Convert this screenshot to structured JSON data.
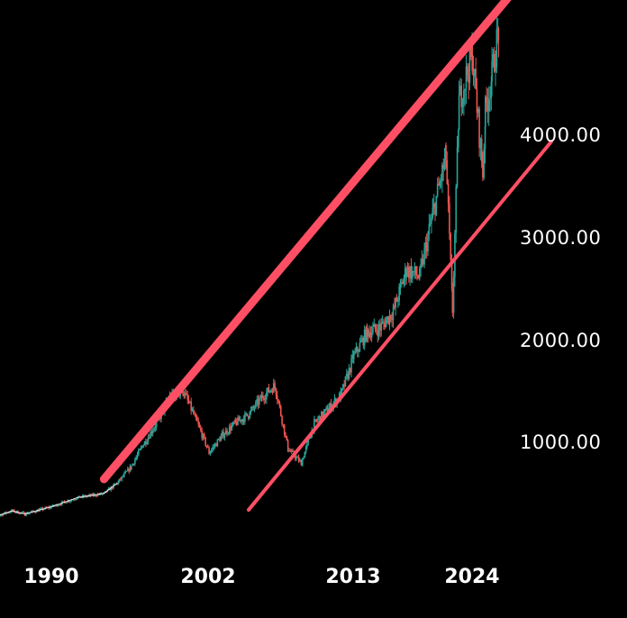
{
  "chart_data": {
    "type": "candlestick",
    "title": "",
    "xlabel": "",
    "ylabel": "",
    "x_ticks": [
      "1990",
      "2002",
      "2013",
      "2024"
    ],
    "y_ticks": [
      "1000.00",
      "2000.00",
      "3000.00",
      "4000.00"
    ],
    "y_tick_values": [
      1000,
      2000,
      3000,
      4000
    ],
    "y_axis_position": "right",
    "grid": false,
    "colors": {
      "up": "#26a69a",
      "down": "#ef5350",
      "price_line": "#e8e8e8",
      "trendline": "#ff4f64",
      "background": "#000000"
    },
    "series": [
      {
        "x": [
          1985,
          1987,
          1988,
          1990,
          1992,
          1994,
          1995,
          1996,
          1997,
          1998,
          1999,
          2000,
          2001,
          2002,
          2003,
          2004,
          2005,
          2006,
          2007,
          2008,
          2009,
          2010,
          2011,
          2012,
          2013,
          2014,
          2015,
          2016,
          2017,
          2018,
          2019,
          2020,
          2020.5,
          2021,
          2022,
          2022.8,
          2023,
          2023.5,
          2024
        ],
        "values": [
          200,
          290,
          260,
          330,
          420,
          460,
          560,
          710,
          940,
          1150,
          1400,
          1470,
          1180,
          860,
          1030,
          1150,
          1230,
          1400,
          1520,
          890,
          760,
          1150,
          1280,
          1420,
          1800,
          2040,
          2080,
          2240,
          2650,
          2580,
          3200,
          3750,
          2250,
          4300,
          4750,
          3600,
          4200,
          4550,
          5000
        ]
      }
    ],
    "trendlines": [
      {
        "name": "upper",
        "from": {
          "x": 1994,
          "y": 600
        },
        "to": {
          "x": 2025,
          "y": 5350
        }
      },
      {
        "name": "lower",
        "from": {
          "x": 2005,
          "y": 300
        },
        "to": {
          "x": 2028,
          "y": 3900
        }
      }
    ]
  }
}
